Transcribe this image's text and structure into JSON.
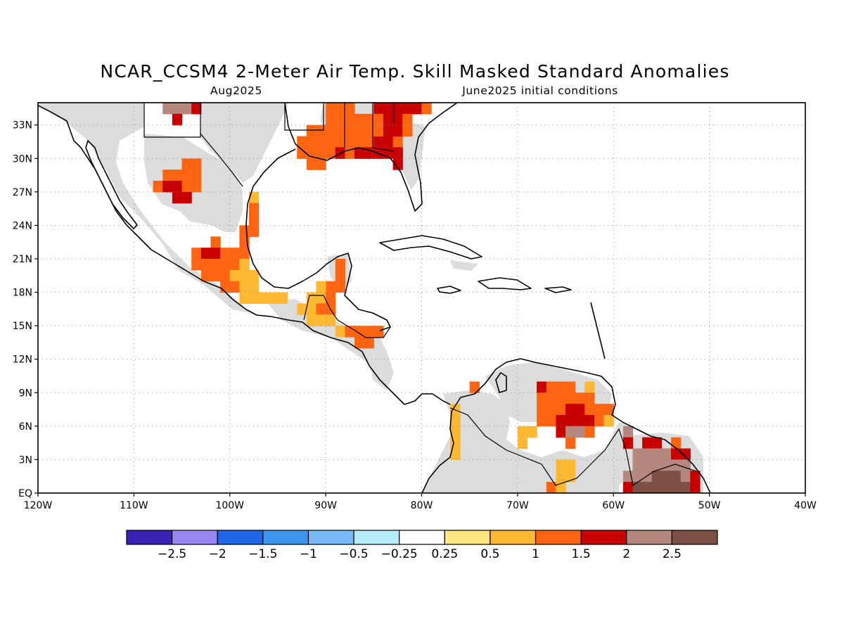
{
  "title": "NCAR_CCSM4 2-Meter Air Temp. Skill Masked Standard Anomalies",
  "valid_month": "Aug2025",
  "initial_conditions": "June2025 initial conditions",
  "map": {
    "lon_range": [
      -120,
      -40
    ],
    "lat_range": [
      0,
      35
    ],
    "x_ticks": [
      {
        "lon": -120,
        "label": "120W"
      },
      {
        "lon": -110,
        "label": "110W"
      },
      {
        "lon": -100,
        "label": "100W"
      },
      {
        "lon": -90,
        "label": "90W"
      },
      {
        "lon": -80,
        "label": "80W"
      },
      {
        "lon": -70,
        "label": "70W"
      },
      {
        "lon": -60,
        "label": "60W"
      },
      {
        "lon": -50,
        "label": "50W"
      },
      {
        "lon": -40,
        "label": "40W"
      }
    ],
    "y_ticks": [
      {
        "lat": 0,
        "label": "EQ"
      },
      {
        "lat": 3,
        "label": "3N"
      },
      {
        "lat": 6,
        "label": "6N"
      },
      {
        "lat": 9,
        "label": "9N"
      },
      {
        "lat": 12,
        "label": "12N"
      },
      {
        "lat": 15,
        "label": "15N"
      },
      {
        "lat": 18,
        "label": "18N"
      },
      {
        "lat": 21,
        "label": "21N"
      },
      {
        "lat": 24,
        "label": "24N"
      },
      {
        "lat": 27,
        "label": "27N"
      },
      {
        "lat": 30,
        "label": "30N"
      },
      {
        "lat": 33,
        "label": "33N"
      }
    ],
    "masked_color": "#dcdcdc"
  },
  "colorbar": {
    "colors": [
      "#3c22b4",
      "#9a86f0",
      "#2266e8",
      "#3c96f0",
      "#78b8f4",
      "#b4ecfa",
      "#ffffff",
      "#ffe680",
      "#ffb832",
      "#ff6410",
      "#c80000",
      "#b4887e",
      "#7c5044"
    ],
    "labels": [
      "-2.5",
      "-2",
      "-1.5",
      "-1",
      "-0.5",
      "-0.25",
      "0.25",
      "0.5",
      "1",
      "1.5",
      "2",
      "2.5"
    ]
  },
  "chart_data": {
    "type": "heatmap",
    "variable": "2-meter air temperature standardized anomaly (skill masked)",
    "cells": [
      {
        "lon": -106.5,
        "lat": 34.5,
        "cat": 11
      },
      {
        "lon": -105.5,
        "lat": 34.5,
        "cat": 11
      },
      {
        "lon": -104.5,
        "lat": 34.5,
        "cat": 11
      },
      {
        "lon": -103.5,
        "lat": 34.5,
        "cat": 10
      },
      {
        "lon": -105.5,
        "lat": 33.5,
        "cat": 10
      },
      {
        "lon": -104.5,
        "lat": 29.5,
        "cat": 9
      },
      {
        "lon": -103.5,
        "lat": 29.5,
        "cat": 9
      },
      {
        "lon": -106.5,
        "lat": 28.5,
        "cat": 9
      },
      {
        "lon": -105.5,
        "lat": 28.5,
        "cat": 9
      },
      {
        "lon": -104.5,
        "lat": 28.5,
        "cat": 9
      },
      {
        "lon": -103.5,
        "lat": 28.5,
        "cat": 9
      },
      {
        "lon": -107.5,
        "lat": 27.5,
        "cat": 9
      },
      {
        "lon": -106.5,
        "lat": 27.5,
        "cat": 10
      },
      {
        "lon": -105.5,
        "lat": 27.5,
        "cat": 10
      },
      {
        "lon": -104.5,
        "lat": 27.5,
        "cat": 9
      },
      {
        "lon": -103.5,
        "lat": 27.5,
        "cat": 9
      },
      {
        "lon": -105.5,
        "lat": 26.5,
        "cat": 10
      },
      {
        "lon": -104.5,
        "lat": 26.5,
        "cat": 10
      },
      {
        "lon": -97.5,
        "lat": 26.5,
        "cat": 8
      },
      {
        "lon": -97.5,
        "lat": 25.5,
        "cat": 9
      },
      {
        "lon": -97.5,
        "lat": 24.5,
        "cat": 9
      },
      {
        "lon": -97.5,
        "lat": 23.5,
        "cat": 9
      },
      {
        "lon": -98.5,
        "lat": 23.5,
        "cat": 9
      },
      {
        "lon": -101.5,
        "lat": 22.5,
        "cat": 9
      },
      {
        "lon": -98.5,
        "lat": 22.5,
        "cat": 9
      },
      {
        "lon": -103.5,
        "lat": 21.5,
        "cat": 9
      },
      {
        "lon": -102.5,
        "lat": 21.5,
        "cat": 10
      },
      {
        "lon": -101.5,
        "lat": 21.5,
        "cat": 10
      },
      {
        "lon": -100.5,
        "lat": 21.5,
        "cat": 9
      },
      {
        "lon": -99.5,
        "lat": 21.5,
        "cat": 9
      },
      {
        "lon": -98.5,
        "lat": 21.5,
        "cat": 9
      },
      {
        "lon": -103.5,
        "lat": 20.5,
        "cat": 9
      },
      {
        "lon": -102.5,
        "lat": 20.5,
        "cat": 9
      },
      {
        "lon": -101.5,
        "lat": 20.5,
        "cat": 9
      },
      {
        "lon": -100.5,
        "lat": 20.5,
        "cat": 9
      },
      {
        "lon": -99.5,
        "lat": 20.5,
        "cat": 9
      },
      {
        "lon": -98.5,
        "lat": 20.5,
        "cat": 8
      },
      {
        "lon": -102.5,
        "lat": 19.5,
        "cat": 9
      },
      {
        "lon": -101.5,
        "lat": 19.5,
        "cat": 9
      },
      {
        "lon": -100.5,
        "lat": 19.5,
        "cat": 9
      },
      {
        "lon": -99.5,
        "lat": 19.5,
        "cat": 8
      },
      {
        "lon": -98.5,
        "lat": 19.5,
        "cat": 8
      },
      {
        "lon": -97.5,
        "lat": 19.5,
        "cat": 8
      },
      {
        "lon": -100.5,
        "lat": 18.5,
        "cat": 9
      },
      {
        "lon": -99.5,
        "lat": 18.5,
        "cat": 9
      },
      {
        "lon": -98.5,
        "lat": 18.5,
        "cat": 8
      },
      {
        "lon": -97.5,
        "lat": 18.5,
        "cat": 8
      },
      {
        "lon": -98.5,
        "lat": 17.5,
        "cat": 8
      },
      {
        "lon": -97.5,
        "lat": 17.5,
        "cat": 8
      },
      {
        "lon": -96.5,
        "lat": 17.5,
        "cat": 8
      },
      {
        "lon": -95.5,
        "lat": 17.5,
        "cat": 8
      },
      {
        "lon": -94.5,
        "lat": 17.5,
        "cat": 8
      },
      {
        "lon": -88.5,
        "lat": 20.5,
        "cat": 9
      },
      {
        "lon": -88.5,
        "lat": 19.5,
        "cat": 9
      },
      {
        "lon": -89.5,
        "lat": 18.5,
        "cat": 9
      },
      {
        "lon": -88.5,
        "lat": 18.5,
        "cat": 9
      },
      {
        "lon": -90.5,
        "lat": 18.5,
        "cat": 8
      },
      {
        "lon": -91.5,
        "lat": 17.5,
        "cat": 8
      },
      {
        "lon": -90.5,
        "lat": 17.5,
        "cat": 8
      },
      {
        "lon": -89.5,
        "lat": 17.5,
        "cat": 9
      },
      {
        "lon": -92.5,
        "lat": 16.5,
        "cat": 8
      },
      {
        "lon": -91.5,
        "lat": 16.5,
        "cat": 8
      },
      {
        "lon": -90.5,
        "lat": 16.5,
        "cat": 9
      },
      {
        "lon": -89.5,
        "lat": 16.5,
        "cat": 9
      },
      {
        "lon": -91.5,
        "lat": 15.5,
        "cat": 8
      },
      {
        "lon": -90.5,
        "lat": 15.5,
        "cat": 8
      },
      {
        "lon": -89.5,
        "lat": 15.5,
        "cat": 8
      },
      {
        "lon": -88.5,
        "lat": 14.5,
        "cat": 8
      },
      {
        "lon": -87.5,
        "lat": 14.5,
        "cat": 9
      },
      {
        "lon": -86.5,
        "lat": 14.5,
        "cat": 9
      },
      {
        "lon": -85.5,
        "lat": 14.5,
        "cat": 9
      },
      {
        "lon": -84.5,
        "lat": 14.5,
        "cat": 9
      },
      {
        "lon": -86.5,
        "lat": 13.5,
        "cat": 9
      },
      {
        "lon": -85.5,
        "lat": 13.5,
        "cat": 9
      },
      {
        "lon": -92.5,
        "lat": 31.5,
        "cat": 9
      },
      {
        "lon": -91.5,
        "lat": 31.5,
        "cat": 9
      },
      {
        "lon": -90.5,
        "lat": 31.5,
        "cat": 9
      },
      {
        "lon": -89.5,
        "lat": 31.5,
        "cat": 9
      },
      {
        "lon": -88.5,
        "lat": 31.5,
        "cat": 9
      },
      {
        "lon": -87.5,
        "lat": 31.5,
        "cat": 9
      },
      {
        "lon": -86.5,
        "lat": 31.5,
        "cat": 9
      },
      {
        "lon": -85.5,
        "lat": 31.5,
        "cat": 9
      },
      {
        "lon": -84.5,
        "lat": 31.5,
        "cat": 10
      },
      {
        "lon": -83.5,
        "lat": 31.5,
        "cat": 10
      },
      {
        "lon": -82.5,
        "lat": 31.5,
        "cat": 9
      },
      {
        "lon": -92.5,
        "lat": 30.5,
        "cat": 9
      },
      {
        "lon": -91.5,
        "lat": 30.5,
        "cat": 9
      },
      {
        "lon": -90.5,
        "lat": 30.5,
        "cat": 9
      },
      {
        "lon": -89.5,
        "lat": 30.5,
        "cat": 9
      },
      {
        "lon": -88.5,
        "lat": 30.5,
        "cat": 10
      },
      {
        "lon": -87.5,
        "lat": 30.5,
        "cat": 9
      },
      {
        "lon": -86.5,
        "lat": 30.5,
        "cat": 10
      },
      {
        "lon": -85.5,
        "lat": 30.5,
        "cat": 10
      },
      {
        "lon": -84.5,
        "lat": 30.5,
        "cat": 10
      },
      {
        "lon": -83.5,
        "lat": 30.5,
        "cat": 10
      },
      {
        "lon": -82.5,
        "lat": 30.5,
        "cat": 10
      },
      {
        "lon": -82.5,
        "lat": 29.5,
        "cat": 10
      },
      {
        "lon": -90.5,
        "lat": 29.5,
        "cat": 9
      },
      {
        "lon": -91.5,
        "lat": 29.5,
        "cat": 9
      },
      {
        "lon": -89.5,
        "lat": 34.5,
        "cat": 9
      },
      {
        "lon": -88.5,
        "lat": 34.5,
        "cat": 9
      },
      {
        "lon": -87.5,
        "lat": 34.5,
        "cat": 9
      },
      {
        "lon": -84.5,
        "lat": 34.5,
        "cat": 10
      },
      {
        "lon": -83.5,
        "lat": 34.5,
        "cat": 10
      },
      {
        "lon": -82.5,
        "lat": 34.5,
        "cat": 10
      },
      {
        "lon": -81.5,
        "lat": 34.5,
        "cat": 10
      },
      {
        "lon": -80.5,
        "lat": 34.5,
        "cat": 10
      },
      {
        "lon": -79.5,
        "lat": 34.5,
        "cat": 9
      },
      {
        "lon": -89.5,
        "lat": 33.5,
        "cat": 9
      },
      {
        "lon": -88.5,
        "lat": 33.5,
        "cat": 9
      },
      {
        "lon": -87.5,
        "lat": 33.5,
        "cat": 9
      },
      {
        "lon": -86.5,
        "lat": 33.5,
        "cat": 9
      },
      {
        "lon": -85.5,
        "lat": 33.5,
        "cat": 9
      },
      {
        "lon": -84.5,
        "lat": 33.5,
        "cat": 9
      },
      {
        "lon": -83.5,
        "lat": 33.5,
        "cat": 10
      },
      {
        "lon": -82.5,
        "lat": 33.5,
        "cat": 10
      },
      {
        "lon": -81.5,
        "lat": 33.5,
        "cat": 9
      },
      {
        "lon": -91.5,
        "lat": 32.5,
        "cat": 9
      },
      {
        "lon": -90.5,
        "lat": 32.5,
        "cat": 9
      },
      {
        "lon": -89.5,
        "lat": 32.5,
        "cat": 9
      },
      {
        "lon": -88.5,
        "lat": 32.5,
        "cat": 9
      },
      {
        "lon": -87.5,
        "lat": 32.5,
        "cat": 9
      },
      {
        "lon": -86.5,
        "lat": 32.5,
        "cat": 9
      },
      {
        "lon": -85.5,
        "lat": 32.5,
        "cat": 9
      },
      {
        "lon": -84.5,
        "lat": 32.5,
        "cat": 9
      },
      {
        "lon": -83.5,
        "lat": 32.5,
        "cat": 10
      },
      {
        "lon": -82.5,
        "lat": 32.5,
        "cat": 10
      },
      {
        "lon": -81.5,
        "lat": 32.5,
        "cat": 9
      },
      {
        "lon": -74.5,
        "lat": 9.5,
        "cat": 9
      },
      {
        "lon": -76.5,
        "lat": 7.5,
        "cat": 8
      },
      {
        "lon": -76.5,
        "lat": 6.5,
        "cat": 8
      },
      {
        "lon": -76.5,
        "lat": 5.5,
        "cat": 8
      },
      {
        "lon": -76.5,
        "lat": 4.5,
        "cat": 8
      },
      {
        "lon": -76.5,
        "lat": 3.5,
        "cat": 8
      },
      {
        "lon": -67.5,
        "lat": 9.5,
        "cat": 10
      },
      {
        "lon": -66.5,
        "lat": 9.5,
        "cat": 9
      },
      {
        "lon": -65.5,
        "lat": 9.5,
        "cat": 9
      },
      {
        "lon": -64.5,
        "lat": 9.5,
        "cat": 9
      },
      {
        "lon": -62.5,
        "lat": 9.5,
        "cat": 8
      },
      {
        "lon": -67.5,
        "lat": 8.5,
        "cat": 9
      },
      {
        "lon": -66.5,
        "lat": 8.5,
        "cat": 9
      },
      {
        "lon": -65.5,
        "lat": 8.5,
        "cat": 9
      },
      {
        "lon": -64.5,
        "lat": 8.5,
        "cat": 9
      },
      {
        "lon": -63.5,
        "lat": 8.5,
        "cat": 9
      },
      {
        "lon": -62.5,
        "lat": 8.5,
        "cat": 9
      },
      {
        "lon": -67.5,
        "lat": 7.5,
        "cat": 9
      },
      {
        "lon": -66.5,
        "lat": 7.5,
        "cat": 9
      },
      {
        "lon": -65.5,
        "lat": 7.5,
        "cat": 9
      },
      {
        "lon": -64.5,
        "lat": 7.5,
        "cat": 10
      },
      {
        "lon": -63.5,
        "lat": 7.5,
        "cat": 10
      },
      {
        "lon": -62.5,
        "lat": 7.5,
        "cat": 9
      },
      {
        "lon": -61.5,
        "lat": 7.5,
        "cat": 9
      },
      {
        "lon": -60.5,
        "lat": 7.5,
        "cat": 9
      },
      {
        "lon": -67.5,
        "lat": 6.5,
        "cat": 9
      },
      {
        "lon": -66.5,
        "lat": 6.5,
        "cat": 9
      },
      {
        "lon": -65.5,
        "lat": 6.5,
        "cat": 10
      },
      {
        "lon": -64.5,
        "lat": 6.5,
        "cat": 10
      },
      {
        "lon": -63.5,
        "lat": 6.5,
        "cat": 10
      },
      {
        "lon": -62.5,
        "lat": 6.5,
        "cat": 10
      },
      {
        "lon": -61.5,
        "lat": 6.5,
        "cat": 9
      },
      {
        "lon": -60.5,
        "lat": 6.5,
        "cat": 8
      },
      {
        "lon": -69.5,
        "lat": 5.5,
        "cat": 8
      },
      {
        "lon": -68.5,
        "lat": 5.5,
        "cat": 8
      },
      {
        "lon": -65.5,
        "lat": 5.5,
        "cat": 10
      },
      {
        "lon": -64.5,
        "lat": 5.5,
        "cat": 11
      },
      {
        "lon": -63.5,
        "lat": 5.5,
        "cat": 11
      },
      {
        "lon": -62.5,
        "lat": 5.5,
        "cat": 9
      },
      {
        "lon": -64.5,
        "lat": 4.5,
        "cat": 9
      },
      {
        "lon": -69.5,
        "lat": 4.5,
        "cat": 8
      },
      {
        "lon": -58.5,
        "lat": 5.5,
        "cat": 11
      },
      {
        "lon": -58.5,
        "lat": 4.5,
        "cat": 10
      },
      {
        "lon": -56.5,
        "lat": 4.5,
        "cat": 10
      },
      {
        "lon": -55.5,
        "lat": 4.5,
        "cat": 10
      },
      {
        "lon": -53.5,
        "lat": 4.5,
        "cat": 9
      },
      {
        "lon": -57.5,
        "lat": 3.5,
        "cat": 11
      },
      {
        "lon": -56.5,
        "lat": 3.5,
        "cat": 11
      },
      {
        "lon": -55.5,
        "lat": 3.5,
        "cat": 11
      },
      {
        "lon": -54.5,
        "lat": 3.5,
        "cat": 11
      },
      {
        "lon": -53.5,
        "lat": 3.5,
        "cat": 10
      },
      {
        "lon": -52.5,
        "lat": 3.5,
        "cat": 10
      },
      {
        "lon": -57.5,
        "lat": 2.5,
        "cat": 11
      },
      {
        "lon": -56.5,
        "lat": 2.5,
        "cat": 11
      },
      {
        "lon": -55.5,
        "lat": 2.5,
        "cat": 11
      },
      {
        "lon": -54.5,
        "lat": 2.5,
        "cat": 11
      },
      {
        "lon": -53.5,
        "lat": 2.5,
        "cat": 11
      },
      {
        "lon": -52.5,
        "lat": 2.5,
        "cat": 11
      },
      {
        "lon": -58.5,
        "lat": 1.5,
        "cat": 11
      },
      {
        "lon": -57.5,
        "lat": 1.5,
        "cat": 11
      },
      {
        "lon": -56.5,
        "lat": 1.5,
        "cat": 11
      },
      {
        "lon": -55.5,
        "lat": 1.5,
        "cat": 12
      },
      {
        "lon": -54.5,
        "lat": 1.5,
        "cat": 12
      },
      {
        "lon": -53.5,
        "lat": 1.5,
        "cat": 12
      },
      {
        "lon": -52.5,
        "lat": 1.5,
        "cat": 11
      },
      {
        "lon": -51.5,
        "lat": 1.5,
        "cat": 10
      },
      {
        "lon": -58.5,
        "lat": 0.5,
        "cat": 10
      },
      {
        "lon": -57.5,
        "lat": 0.5,
        "cat": 12
      },
      {
        "lon": -56.5,
        "lat": 0.5,
        "cat": 12
      },
      {
        "lon": -55.5,
        "lat": 0.5,
        "cat": 12
      },
      {
        "lon": -54.5,
        "lat": 0.5,
        "cat": 12
      },
      {
        "lon": -53.5,
        "lat": 0.5,
        "cat": 12
      },
      {
        "lon": -52.5,
        "lat": 0.5,
        "cat": 12
      },
      {
        "lon": -51.5,
        "lat": 0.5,
        "cat": 10
      },
      {
        "lon": -65.5,
        "lat": 2.5,
        "cat": 8
      },
      {
        "lon": -64.5,
        "lat": 2.5,
        "cat": 8
      },
      {
        "lon": -65.5,
        "lat": 1.5,
        "cat": 8
      },
      {
        "lon": -64.5,
        "lat": 1.5,
        "cat": 8
      },
      {
        "lon": -66.5,
        "lat": 0.5,
        "cat": 9
      },
      {
        "lon": -65.5,
        "lat": 0.5,
        "cat": 8
      }
    ]
  }
}
